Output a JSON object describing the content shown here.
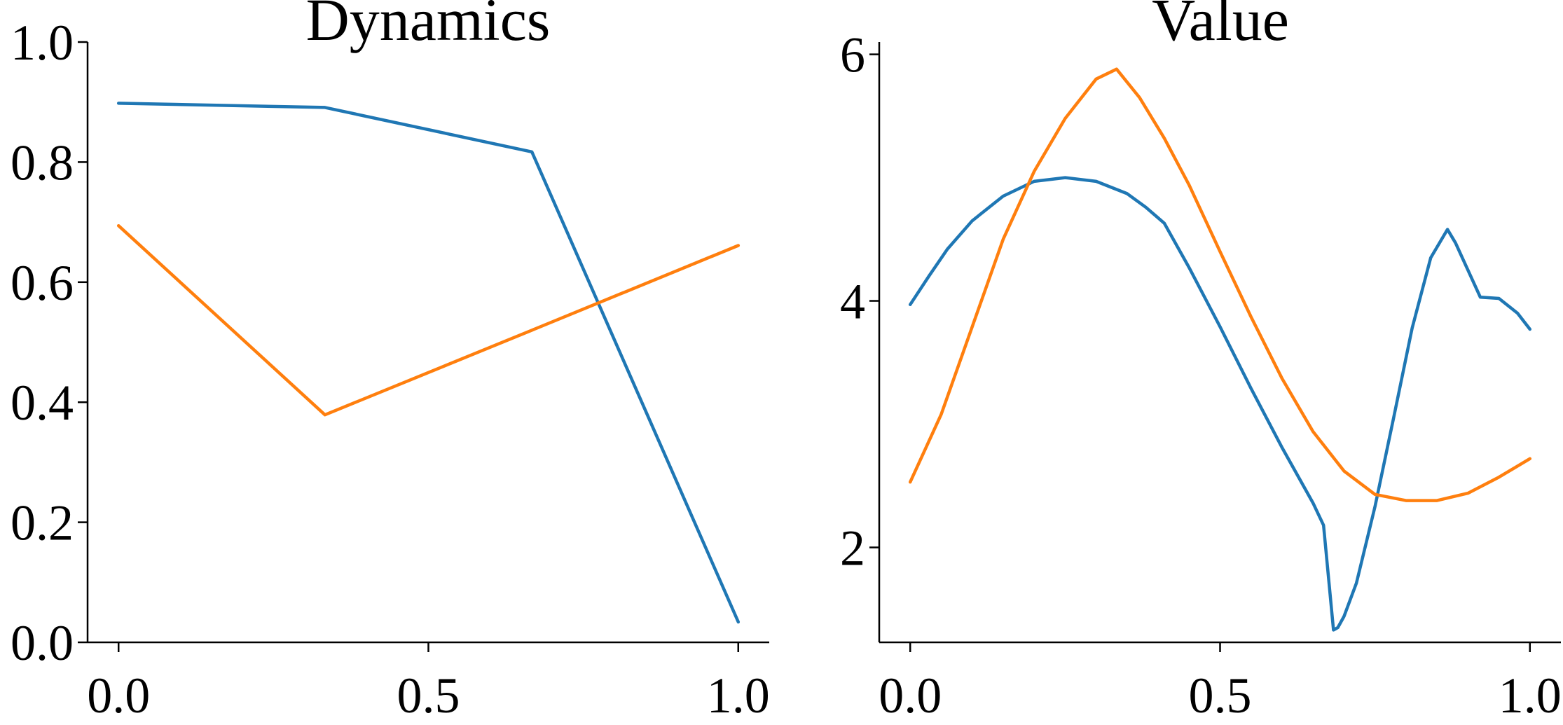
{
  "chart_data": [
    {
      "type": "line",
      "title": "Dynamics",
      "xlabel": "",
      "ylabel": "",
      "xlim": [
        -0.05,
        1.05
      ],
      "ylim": [
        0.0,
        1.0
      ],
      "xticks": [
        0.0,
        0.5,
        1.0
      ],
      "xtick_labels": [
        "0.0",
        "0.5",
        "1.0"
      ],
      "yticks": [
        0.0,
        0.2,
        0.4,
        0.6,
        0.8,
        1.0
      ],
      "ytick_labels": [
        "0.0",
        "0.2",
        "0.4",
        "0.6",
        "0.8",
        "1.0"
      ],
      "grid": false,
      "series": [
        {
          "color": "#1f77b4",
          "x": [
            0.0,
            0.333,
            0.667,
            1.0
          ],
          "y": [
            0.898,
            0.891,
            0.817,
            0.034
          ]
        },
        {
          "color": "#ff7f0e",
          "x": [
            0.0,
            0.333,
            0.667,
            1.0
          ],
          "y": [
            0.694,
            0.379,
            0.52,
            0.661
          ]
        }
      ]
    },
    {
      "type": "line",
      "title": "Value",
      "xlabel": "",
      "ylabel": "",
      "xlim": [
        -0.05,
        1.05
      ],
      "ylim": [
        1.23,
        6.1
      ],
      "xticks": [
        0.0,
        0.5,
        1.0
      ],
      "xtick_labels": [
        "0.0",
        "0.5",
        "1.0"
      ],
      "yticks": [
        2,
        4,
        6
      ],
      "ytick_labels": [
        "2",
        "4",
        "6"
      ],
      "grid": false,
      "series": [
        {
          "color": "#1f77b4",
          "x": [
            0.0,
            0.03,
            0.06,
            0.1,
            0.15,
            0.2,
            0.25,
            0.3,
            0.35,
            0.38,
            0.41,
            0.45,
            0.5,
            0.55,
            0.6,
            0.65,
            0.667,
            0.683,
            0.69,
            0.7,
            0.72,
            0.75,
            0.78,
            0.81,
            0.84,
            0.867,
            0.88,
            0.9,
            0.92,
            0.95,
            0.98,
            1.0
          ],
          "y": [
            3.97,
            4.2,
            4.42,
            4.65,
            4.85,
            4.97,
            5.0,
            4.97,
            4.87,
            4.76,
            4.63,
            4.27,
            3.79,
            3.29,
            2.81,
            2.36,
            2.18,
            1.33,
            1.35,
            1.44,
            1.71,
            2.33,
            3.05,
            3.78,
            4.35,
            4.58,
            4.47,
            4.25,
            4.03,
            4.02,
            3.9,
            3.77
          ]
        },
        {
          "color": "#ff7f0e",
          "x": [
            0.0,
            0.05,
            0.1,
            0.15,
            0.2,
            0.25,
            0.3,
            0.333,
            0.37,
            0.41,
            0.45,
            0.5,
            0.55,
            0.6,
            0.65,
            0.7,
            0.75,
            0.8,
            0.85,
            0.9,
            0.95,
            1.0
          ],
          "y": [
            2.53,
            3.08,
            3.79,
            4.5,
            5.05,
            5.48,
            5.8,
            5.88,
            5.65,
            5.32,
            4.94,
            4.4,
            3.87,
            3.37,
            2.94,
            2.62,
            2.43,
            2.38,
            2.38,
            2.44,
            2.57,
            2.72
          ]
        }
      ]
    }
  ]
}
